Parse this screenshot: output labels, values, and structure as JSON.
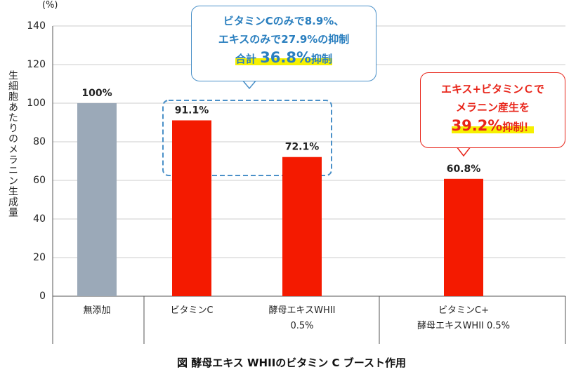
{
  "y_unit": "(%)",
  "y_label": "生細胞あたりのメラニン生成量",
  "caption": "図 酵母エキス WHIIのビタミン C ブースト作用",
  "chart_data": {
    "type": "bar",
    "categories": [
      "無添加",
      "ビタミンC",
      "酵母エキスWHII\n0.5%",
      "ビタミンC+\n酵母エキスWHII 0.5%"
    ],
    "values": [
      100,
      91.1,
      72.1,
      60.8
    ],
    "value_labels": [
      "100%",
      "91.1%",
      "72.1%",
      "60.8%"
    ],
    "colors": [
      "#9ba9b8",
      "#f41a00",
      "#f41a00",
      "#f41a00"
    ],
    "ylim": [
      0,
      140
    ],
    "yticks": [
      0,
      20,
      40,
      60,
      80,
      100,
      120,
      140
    ],
    "grid": true
  },
  "annotations": [
    {
      "lines": [
        "ビタミンCのみで8.9%、",
        "エキスのみで27.9%の抑制"
      ],
      "highlight": [
        "合計",
        "36.8%",
        "抑制"
      ]
    },
    {
      "lines": [
        "エキス+ビタミンＣで",
        "メラニン産生を"
      ],
      "highlight": [
        "39.2%",
        "抑制！"
      ]
    }
  ]
}
